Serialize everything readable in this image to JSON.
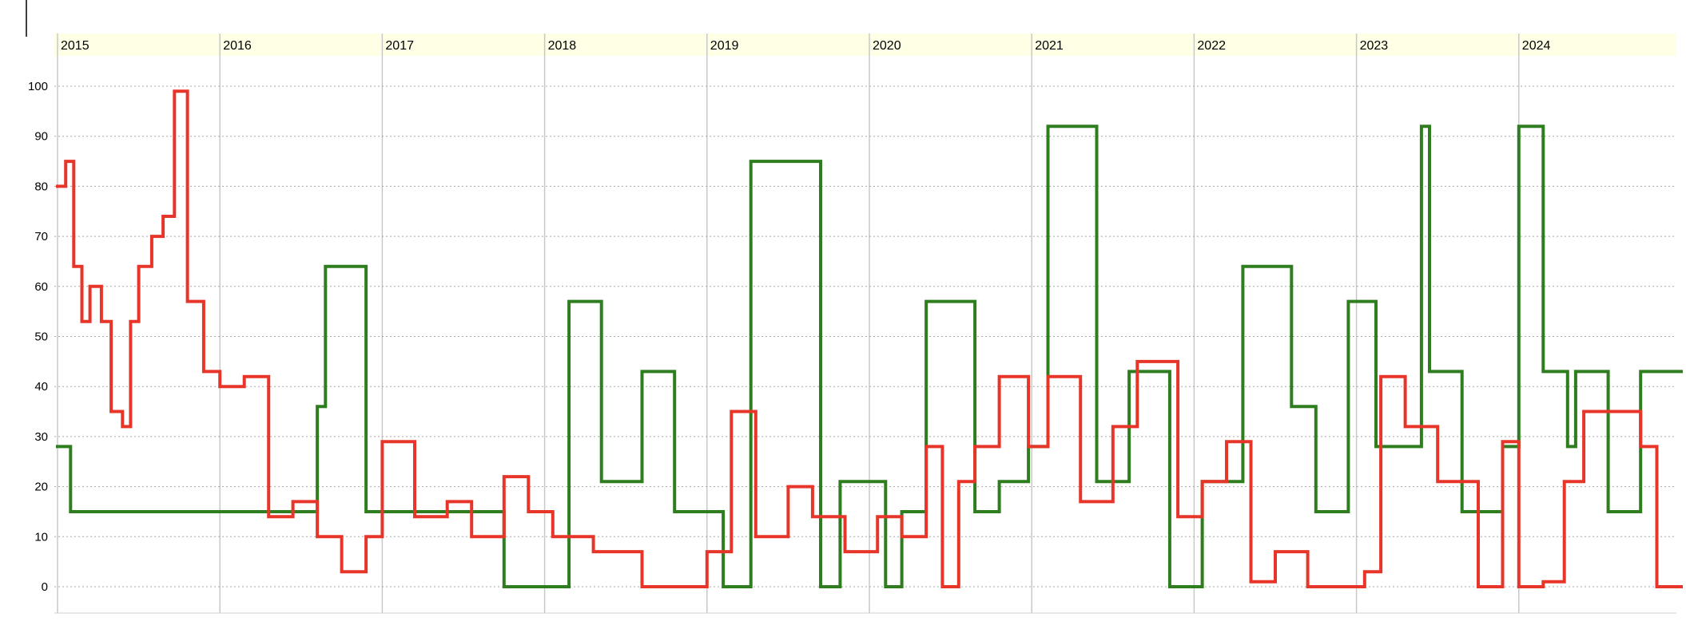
{
  "chart_data": {
    "type": "line",
    "step": true,
    "title": "",
    "xlabel": "",
    "ylabel": "",
    "x_tick_labels": [
      "2015",
      "2016",
      "2017",
      "2018",
      "2019",
      "2020",
      "2021",
      "2022",
      "2023",
      "2024"
    ],
    "y_ticks": [
      0,
      10,
      20,
      30,
      40,
      50,
      60,
      70,
      80,
      90,
      100
    ],
    "xlim": [
      2015.0,
      2025.0
    ],
    "ylim": [
      -5,
      105
    ],
    "grid": true,
    "legend": "none",
    "series": [
      {
        "color": "#2e7d1f",
        "x": [
          2015.0,
          2015.08,
          2016.2,
          2016.6,
          2016.65,
          2016.9,
          2017.3,
          2017.75,
          2018.15,
          2018.35,
          2018.6,
          2018.8,
          2019.1,
          2019.27,
          2019.7,
          2019.82,
          2020.1,
          2020.2,
          2020.35,
          2020.65,
          2020.8,
          2020.98,
          2021.1,
          2021.4,
          2021.6,
          2021.85,
          2022.05,
          2022.3,
          2022.6,
          2022.75,
          2022.95,
          2023.12,
          2023.4,
          2023.45,
          2023.65,
          2023.9,
          2024.0,
          2024.15,
          2024.3,
          2024.35,
          2024.55,
          2024.75,
          2025.0
        ],
        "y": [
          28,
          15,
          15,
          36,
          64,
          15,
          15,
          0,
          57,
          21,
          43,
          15,
          0,
          85,
          0,
          21,
          0,
          15,
          57,
          15,
          21,
          28,
          92,
          21,
          43,
          0,
          21,
          64,
          36,
          15,
          57,
          28,
          92,
          43,
          15,
          28,
          92,
          43,
          28,
          43,
          15,
          43,
          43
        ]
      },
      {
        "color": "#e8352a",
        "x": [
          2015.0,
          2015.05,
          2015.1,
          2015.15,
          2015.2,
          2015.27,
          2015.33,
          2015.4,
          2015.45,
          2015.5,
          2015.58,
          2015.65,
          2015.72,
          2015.8,
          2015.9,
          2016.0,
          2016.15,
          2016.3,
          2016.45,
          2016.6,
          2016.75,
          2016.9,
          2017.0,
          2017.2,
          2017.4,
          2017.55,
          2017.75,
          2017.9,
          2018.05,
          2018.3,
          2018.6,
          2018.9,
          2019.0,
          2019.15,
          2019.3,
          2019.5,
          2019.65,
          2019.85,
          2020.05,
          2020.2,
          2020.35,
          2020.45,
          2020.55,
          2020.65,
          2020.8,
          2020.98,
          2021.1,
          2021.3,
          2021.5,
          2021.65,
          2021.9,
          2022.05,
          2022.2,
          2022.35,
          2022.5,
          2022.7,
          2022.9,
          2023.05,
          2023.15,
          2023.3,
          2023.5,
          2023.75,
          2023.9,
          2024.0,
          2024.15,
          2024.28,
          2024.4,
          2024.55,
          2024.75,
          2024.85,
          2025.0
        ],
        "y": [
          80,
          85,
          64,
          53,
          60,
          53,
          35,
          32,
          53,
          64,
          70,
          74,
          99,
          57,
          43,
          40,
          42,
          14,
          17,
          10,
          3,
          10,
          29,
          14,
          17,
          10,
          22,
          15,
          10,
          7,
          0,
          0,
          7,
          35,
          10,
          20,
          14,
          7,
          14,
          10,
          28,
          0,
          21,
          28,
          42,
          28,
          42,
          17,
          32,
          45,
          14,
          21,
          29,
          1,
          7,
          0,
          0,
          3,
          42,
          32,
          21,
          0,
          29,
          0,
          1,
          21,
          35,
          35,
          28,
          0,
          0
        ]
      }
    ]
  }
}
